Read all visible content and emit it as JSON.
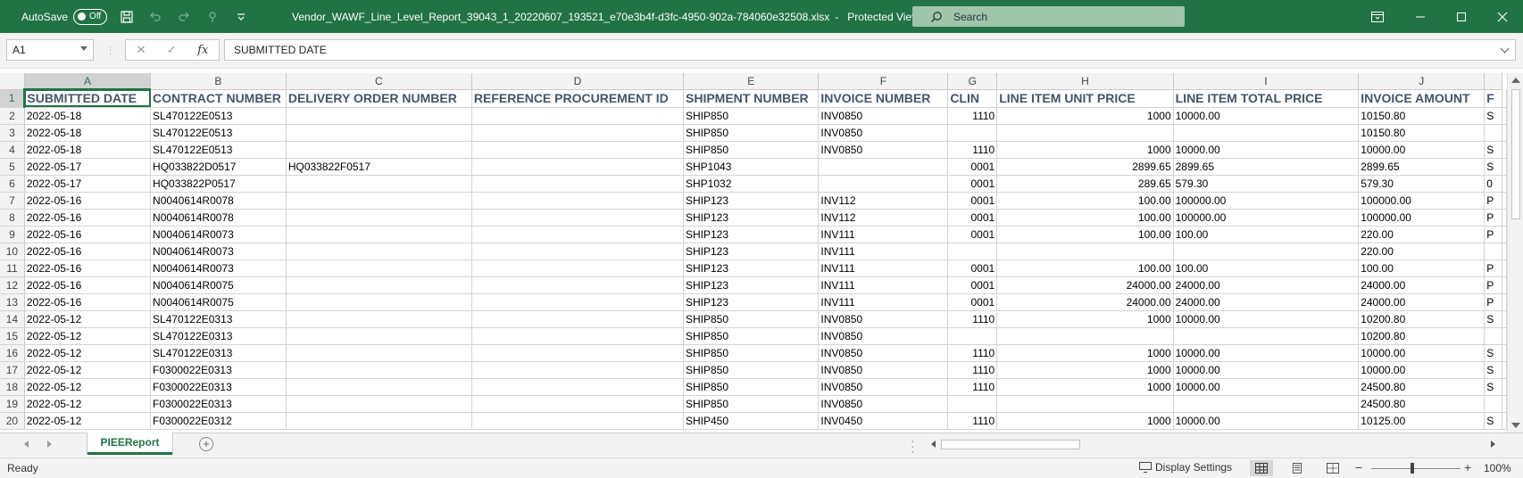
{
  "titlebar": {
    "autosave_label": "AutoSave",
    "autosave_state": "Off",
    "filename": "Vendor_WAWF_Line_Level_Report_39043_1_20220607_193521_e70e3b4f-d3fc-4950-902a-784060e32508.xlsx",
    "separator": "-",
    "protected_view": "Protected View",
    "search_placeholder": "Search",
    "colors": {
      "bar": "#217346",
      "search": "#9fc5ab"
    }
  },
  "formulabar": {
    "name_box": "A1",
    "formula_value": "SUBMITTED DATE"
  },
  "grid": {
    "column_letters": [
      "A",
      "B",
      "C",
      "D",
      "E",
      "F",
      "G",
      "H",
      "I",
      "J",
      ""
    ],
    "header_row": [
      "SUBMITTED DATE",
      "CONTRACT NUMBER",
      "DELIVERY ORDER NUMBER",
      "REFERENCE PROCUREMENT ID",
      "SHIPMENT NUMBER",
      "INVOICE NUMBER",
      "CLIN",
      "LINE ITEM UNIT PRICE",
      "LINE ITEM TOTAL PRICE",
      "INVOICE AMOUNT",
      "F"
    ],
    "rows": [
      [
        "2022-05-18",
        "SL470122E0513",
        "",
        "",
        "SHIP850",
        "INV0850",
        "1110",
        "1000",
        "10000.00",
        "10150.80",
        "S"
      ],
      [
        "2022-05-18",
        "SL470122E0513",
        "",
        "",
        "SHIP850",
        "INV0850",
        "",
        "",
        "",
        "10150.80",
        ""
      ],
      [
        "2022-05-18",
        "SL470122E0513",
        "",
        "",
        "SHIP850",
        "INV0850",
        "1110",
        "1000",
        "10000.00",
        "10000.00",
        "S"
      ],
      [
        "2022-05-17",
        "HQ033822D0517",
        "HQ033822F0517",
        "",
        "SHP1043",
        "",
        "0001",
        "2899.65",
        "2899.65",
        "2899.65",
        "S"
      ],
      [
        "2022-05-17",
        "HQ033822P0517",
        "",
        "",
        "SHP1032",
        "",
        "0001",
        "289.65",
        "579.30",
        "579.30",
        "0"
      ],
      [
        "2022-05-16",
        "N0040614R0078",
        "",
        "",
        "SHIP123",
        "INV112",
        "0001",
        "100.00",
        "100000.00",
        "100000.00",
        "P"
      ],
      [
        "2022-05-16",
        "N0040614R0078",
        "",
        "",
        "SHIP123",
        "INV112",
        "0001",
        "100.00",
        "100000.00",
        "100000.00",
        "P"
      ],
      [
        "2022-05-16",
        "N0040614R0073",
        "",
        "",
        "SHIP123",
        "INV111",
        "0001",
        "100.00",
        "100.00",
        "220.00",
        "P"
      ],
      [
        "2022-05-16",
        "N0040614R0073",
        "",
        "",
        "SHIP123",
        "INV111",
        "",
        "",
        "",
        "220.00",
        ""
      ],
      [
        "2022-05-16",
        "N0040614R0073",
        "",
        "",
        "SHIP123",
        "INV111",
        "0001",
        "100.00",
        "100.00",
        "100.00",
        "P"
      ],
      [
        "2022-05-16",
        "N0040614R0075",
        "",
        "",
        "SHIP123",
        "INV111",
        "0001",
        "24000.00",
        "24000.00",
        "24000.00",
        "P"
      ],
      [
        "2022-05-16",
        "N0040614R0075",
        "",
        "",
        "SHIP123",
        "INV111",
        "0001",
        "24000.00",
        "24000.00",
        "24000.00",
        "P"
      ],
      [
        "2022-05-12",
        "SL470122E0313",
        "",
        "",
        "SHIP850",
        "INV0850",
        "1110",
        "1000",
        "10000.00",
        "10200.80",
        "S"
      ],
      [
        "2022-05-12",
        "SL470122E0313",
        "",
        "",
        "SHIP850",
        "INV0850",
        "",
        "",
        "",
        "10200.80",
        ""
      ],
      [
        "2022-05-12",
        "SL470122E0313",
        "",
        "",
        "SHIP850",
        "INV0850",
        "1110",
        "1000",
        "10000.00",
        "10000.00",
        "S"
      ],
      [
        "2022-05-12",
        "F0300022E0313",
        "",
        "",
        "SHIP850",
        "INV0850",
        "1110",
        "1000",
        "10000.00",
        "10000.00",
        "S"
      ],
      [
        "2022-05-12",
        "F0300022E0313",
        "",
        "",
        "SHIP850",
        "INV0850",
        "1110",
        "1000",
        "10000.00",
        "24500.80",
        "S"
      ],
      [
        "2022-05-12",
        "F0300022E0313",
        "",
        "",
        "SHIP850",
        "INV0850",
        "",
        "",
        "",
        "24500.80",
        ""
      ],
      [
        "2022-05-12",
        "F0300022E0312",
        "",
        "",
        "SHIP450",
        "INV0450",
        "1110",
        "1000",
        "10000.00",
        "10125.00",
        "S"
      ]
    ]
  },
  "sheets": {
    "active_tab": "PIEEReport"
  },
  "statusbar": {
    "status": "Ready",
    "display_settings": "Display Settings",
    "zoom": "100%",
    "zoom_fraction": 0.5
  }
}
